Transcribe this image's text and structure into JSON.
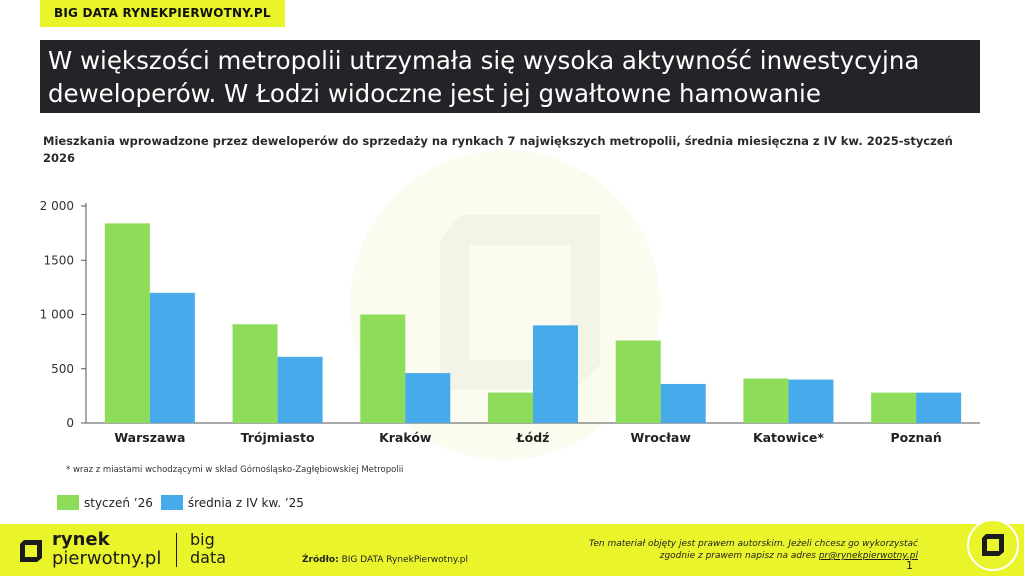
{
  "brand_tag": "BIG DATA RYNEKPIERWOTNY.PL",
  "title_lines": [
    "W większości metropolii utrzymała się wysoka aktywność inwestycyjna",
    "deweloperów. W Łodzi widoczne jest jej gwałtowne hamowanie"
  ],
  "subtitle": "Mieszkania wprowadzone przez deweloperów do sprzedaży na rynkach 7 największych metropolii, średnia miesięczna z IV kw. 2025-styczeń 2026",
  "chart_data": {
    "type": "bar",
    "title": "Mieszkania wprowadzone przez deweloperów do sprzedaży na rynkach 7 największych metropolii, średnia miesięczna z IV kw. 2025-styczeń 2026",
    "categories": [
      "Warszawa",
      "Trójmiasto",
      "Kraków",
      "Łódź",
      "Wrocław",
      "Katowice*",
      "Poznań"
    ],
    "series": [
      {
        "name": "styczeń ’26",
        "color": "#8ddc5a",
        "values": [
          1840,
          910,
          1000,
          280,
          760,
          410,
          280
        ]
      },
      {
        "name": "średnia z IV kw. ’25",
        "color": "#47aaea",
        "values": [
          1200,
          610,
          460,
          900,
          360,
          400,
          280
        ]
      }
    ],
    "yticks": [
      "0",
      "500",
      "1 000",
      "1500",
      "2 000"
    ],
    "ytick_values": [
      0,
      500,
      1000,
      1500,
      2000
    ],
    "ylim": [
      0,
      2000
    ],
    "grid": false,
    "legend_position": "bottom-left"
  },
  "footnote": "* wraz z miastami wchodzącymi w skład Górnośląsko-Zagłębiowskiej Metropolii",
  "footer": {
    "logo_line1": "rynek",
    "logo_line2": "pierwotny.pl",
    "logo_big": "big",
    "logo_data": "data",
    "source_label": "Źródło:",
    "source_text": " BIG DATA RynekPierwotny.pl",
    "copyright_line1": "Ten materiał objęty jest prawem autorskim. Jeżeli chcesz go wykorzystać",
    "copyright_line2": "zgodnie z prawem napisz na adres ",
    "email": "pr@rynekpierwotny.pl",
    "page_number": "1"
  },
  "colors": {
    "accent_yellow": "#e9f52a",
    "title_band": "#232328",
    "green": "#8ddc5a",
    "blue": "#47aaea"
  }
}
